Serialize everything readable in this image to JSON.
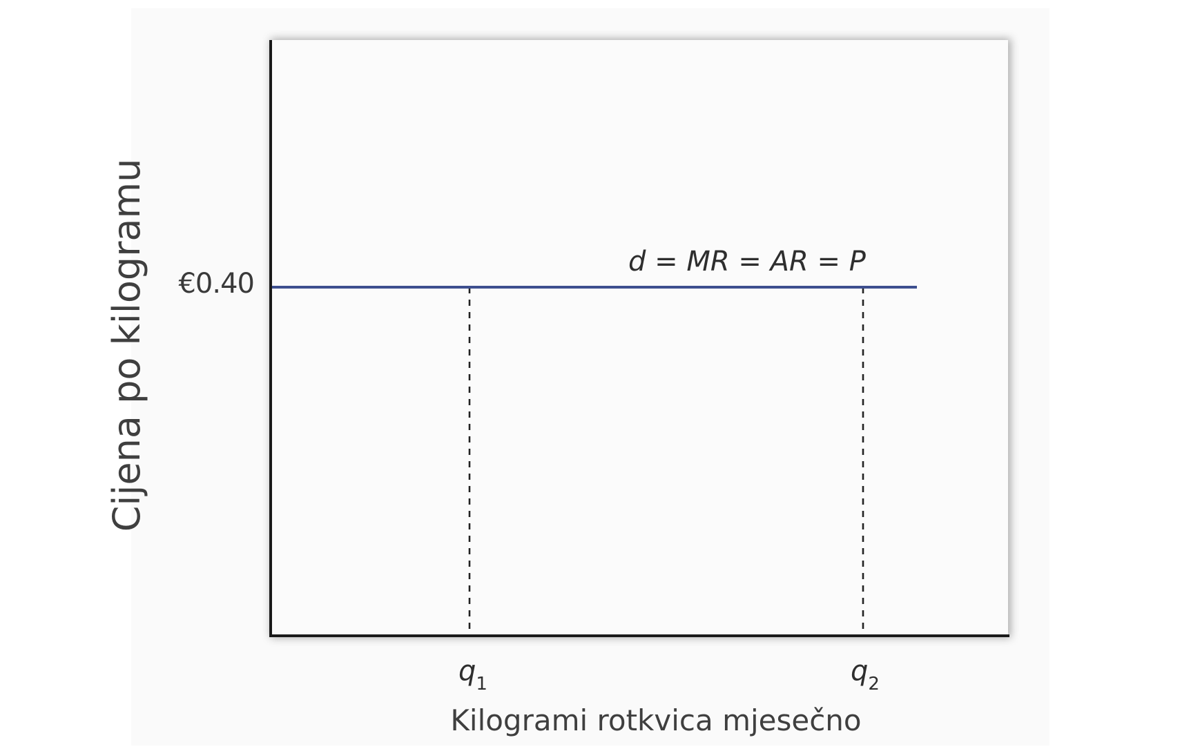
{
  "chart_data": {
    "type": "line",
    "title": "",
    "xlabel": "Kilogrami rotkvica mjesečno",
    "ylabel": "Cijena po kilogramu",
    "y_ticks": [
      {
        "value": 0.4,
        "label": "€0.40"
      }
    ],
    "x_ticks": [
      {
        "label": "q",
        "subscript": "1"
      },
      {
        "label": "q",
        "subscript": "2"
      }
    ],
    "series": [
      {
        "name": "d = MR = AR = P",
        "price": 0.4,
        "color": "#3d4f8f"
      }
    ],
    "reference_lines": [
      {
        "x_tick": "q1",
        "style": "dashed"
      },
      {
        "x_tick": "q2",
        "style": "dashed"
      }
    ],
    "grid": false,
    "legend": "inline-label"
  }
}
